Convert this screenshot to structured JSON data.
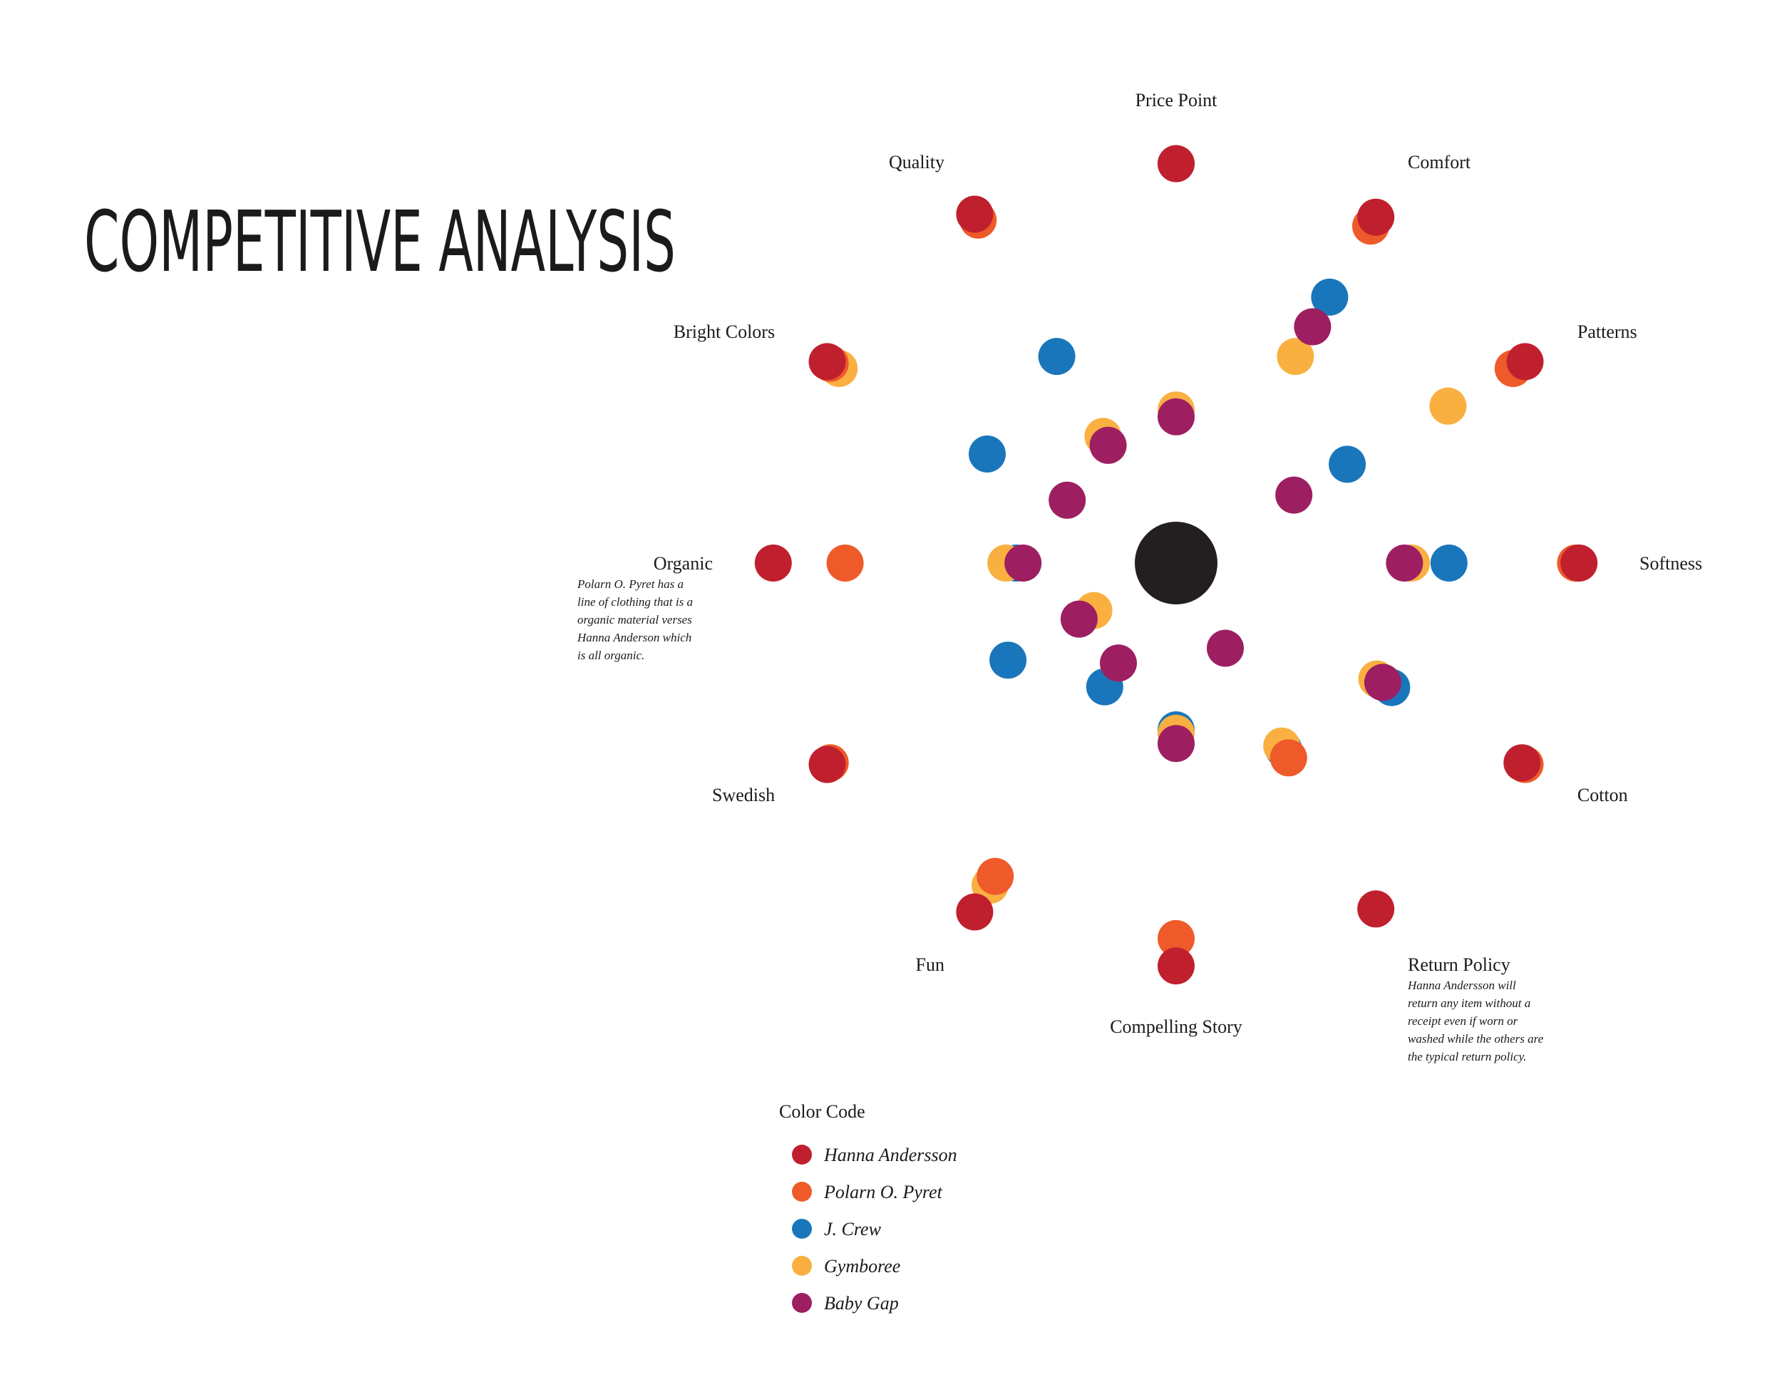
{
  "title": "COMPETITIVE ANALYSIS",
  "colors": {
    "Hanna Andersson": "#c0202e",
    "Polarn O. Pyret": "#ef5a2a",
    "J. Crew": "#1a76bb",
    "Gymboree": "#f9b041",
    "Baby Gap": "#9d1f62",
    "center": "#231f20"
  },
  "chart_data": {
    "type": "scatter",
    "description_type": "radial",
    "center_label": "",
    "axes": [
      {
        "name": "Price Point",
        "note": []
      },
      {
        "name": "Comfort",
        "note": []
      },
      {
        "name": "Patterns",
        "note": []
      },
      {
        "name": "Softness",
        "note": []
      },
      {
        "name": "Cotton",
        "note": []
      },
      {
        "name": "Return Policy",
        "note": [
          "Hanna Andersson will",
          "return any item without a",
          "receipt even if worn or",
          "washed while the others are",
          "the typical return policy."
        ]
      },
      {
        "name": "Compelling Story",
        "note": []
      },
      {
        "name": "Fun",
        "note": []
      },
      {
        "name": "Swedish",
        "note": []
      },
      {
        "name": "Organic",
        "note": [
          "Polarn O. Pyret has a",
          "line of clothing that is a",
          "organic material verses",
          "Hanna Anderson which",
          "is all organic."
        ]
      },
      {
        "name": "Bright Colors",
        "note": []
      },
      {
        "name": "Quality",
        "note": []
      }
    ],
    "series": [
      {
        "name": "J. Crew",
        "points": [
          {
            "axis": "Price Point",
            "value": 0.98
          },
          {
            "axis": "Comfort",
            "value": 0.71
          },
          {
            "axis": "Patterns",
            "value": 0.39
          },
          {
            "axis": "Softness",
            "value": 0.61
          },
          {
            "axis": "Cotton",
            "value": 0.54
          },
          {
            "axis": "Compelling Story",
            "value": 0.3
          },
          {
            "axis": "Swedish",
            "value": 0.38
          },
          {
            "axis": "Organic",
            "value": 0.28
          },
          {
            "axis": "Bright Colors",
            "value": 0.45
          },
          {
            "axis": "Quality",
            "value": 0.51
          },
          {
            "axis": "Fun",
            "value": 0.23
          },
          {
            "axis": "Return Policy",
            "value": 0.44
          }
        ]
      },
      {
        "name": "Gymboree",
        "points": [
          {
            "axis": "Comfort",
            "value": 0.51
          },
          {
            "axis": "Patterns",
            "value": 0.73
          },
          {
            "axis": "Softness",
            "value": 0.5
          },
          {
            "axis": "Cotton",
            "value": 0.49
          },
          {
            "axis": "Compelling Story",
            "value": 0.31
          },
          {
            "axis": "Organic",
            "value": 0.31
          },
          {
            "axis": "Bright Colors",
            "value": 0.95
          },
          {
            "axis": "Quality",
            "value": 0.24
          },
          {
            "axis": "Fun",
            "value": 0.9
          },
          {
            "axis": "Return Policy",
            "value": 0.43
          },
          {
            "axis": "Price Point",
            "value": 0.26
          },
          {
            "axis": "Swedish",
            "value": 0.09
          }
        ]
      },
      {
        "name": "Baby Gap",
        "points": [
          {
            "axis": "Comfort",
            "value": 0.61
          },
          {
            "axis": "Patterns",
            "value": 0.21
          },
          {
            "axis": "Softness",
            "value": 0.48
          },
          {
            "axis": "Cotton",
            "value": 0.51
          },
          {
            "axis": "Compelling Story",
            "value": 0.34
          },
          {
            "axis": "Organic",
            "value": 0.26
          },
          {
            "axis": "Bright Colors",
            "value": 0.18
          },
          {
            "axis": "Quality",
            "value": 0.21
          },
          {
            "axis": "Price Point",
            "value": 0.24
          },
          {
            "axis": "Swedish",
            "value": 0.14
          },
          {
            "axis": "Return Policy",
            "value": 0.1
          },
          {
            "axis": "Fun",
            "value": 0.15
          }
        ]
      },
      {
        "name": "Polarn O. Pyret",
        "points": [
          {
            "axis": "Price Point",
            "value": 0.98
          },
          {
            "axis": "Comfort",
            "value": 0.95
          },
          {
            "axis": "Patterns",
            "value": 0.95
          },
          {
            "axis": "Softness",
            "value": 0.98
          },
          {
            "axis": "Cotton",
            "value": 0.99
          },
          {
            "axis": "Compelling Story",
            "value": 0.91
          },
          {
            "axis": "Swedish",
            "value": 0.98
          },
          {
            "axis": "Organic",
            "value": 0.78
          },
          {
            "axis": "Bright Colors",
            "value": 0.98
          },
          {
            "axis": "Quality",
            "value": 0.97
          },
          {
            "axis": "Fun",
            "value": 0.87
          },
          {
            "axis": "Return Policy",
            "value": 0.47
          }
        ]
      },
      {
        "name": "Hanna Andersson",
        "points": [
          {
            "axis": "Price Point",
            "value": 0.98
          },
          {
            "axis": "Comfort",
            "value": 0.98
          },
          {
            "axis": "Patterns",
            "value": 0.99
          },
          {
            "axis": "Softness",
            "value": 0.99
          },
          {
            "axis": "Cotton",
            "value": 0.98
          },
          {
            "axis": "Compelling Story",
            "value": 0.99
          },
          {
            "axis": "Swedish",
            "value": 0.99
          },
          {
            "axis": "Organic",
            "value": 0.99
          },
          {
            "axis": "Bright Colors",
            "value": 0.99
          },
          {
            "axis": "Quality",
            "value": 0.99
          },
          {
            "axis": "Fun",
            "value": 0.99
          },
          {
            "axis": "Return Policy",
            "value": 0.98
          }
        ]
      }
    ]
  },
  "legend": {
    "title": "Color Code",
    "items": [
      "Hanna Andersson",
      "Polarn O. Pyret",
      "J. Crew",
      "Gymboree",
      "Baby Gap"
    ]
  }
}
